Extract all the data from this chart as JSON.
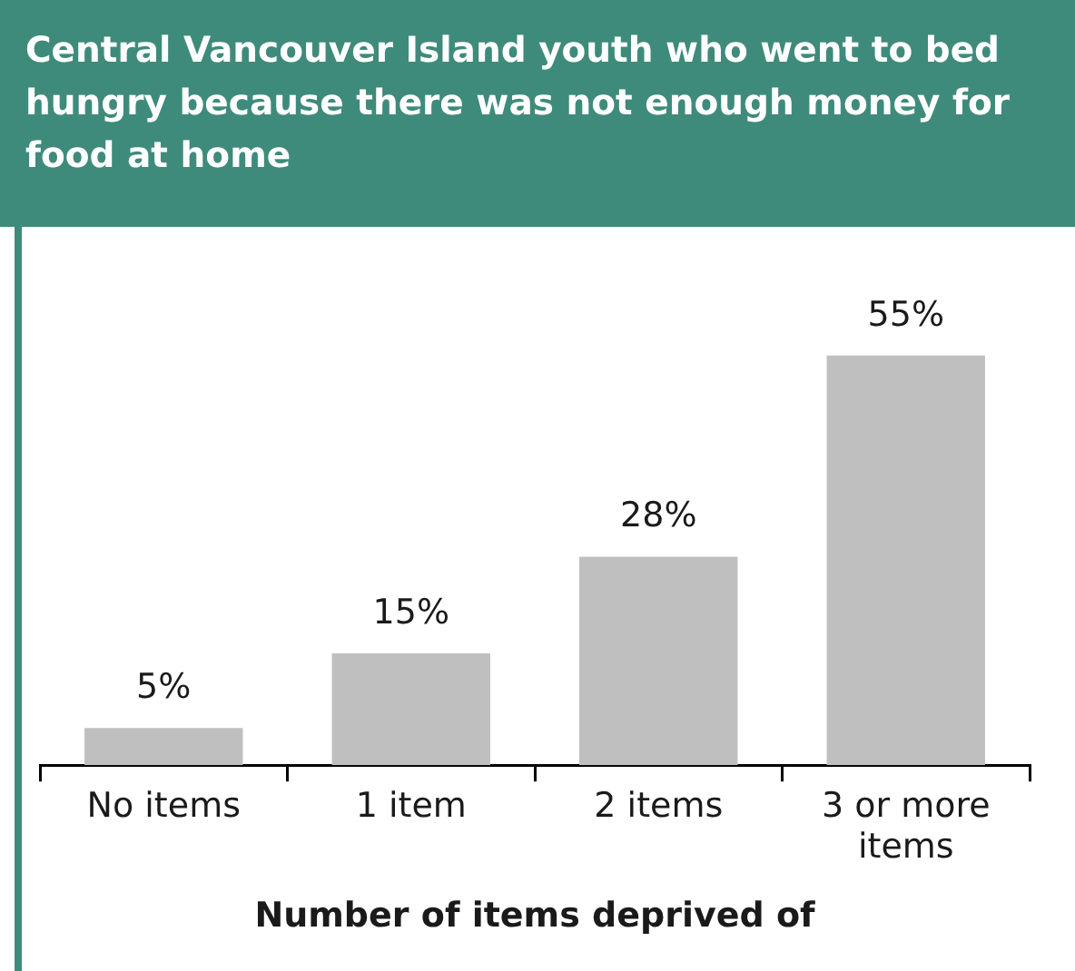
{
  "chart_data": {
    "type": "bar",
    "title": "Central Vancouver Island youth who went to bed hungry because there was not enough money for food at home",
    "xlabel": "Number of items deprived of",
    "categories": [
      "No items",
      "1 item",
      "2 items",
      "3 or more items"
    ],
    "values": [
      5,
      15,
      28,
      55
    ],
    "color": "#bfbfbf",
    "value_labels": [
      "5%",
      "15%",
      "28%",
      "55%"
    ],
    "legend": false
  }
}
